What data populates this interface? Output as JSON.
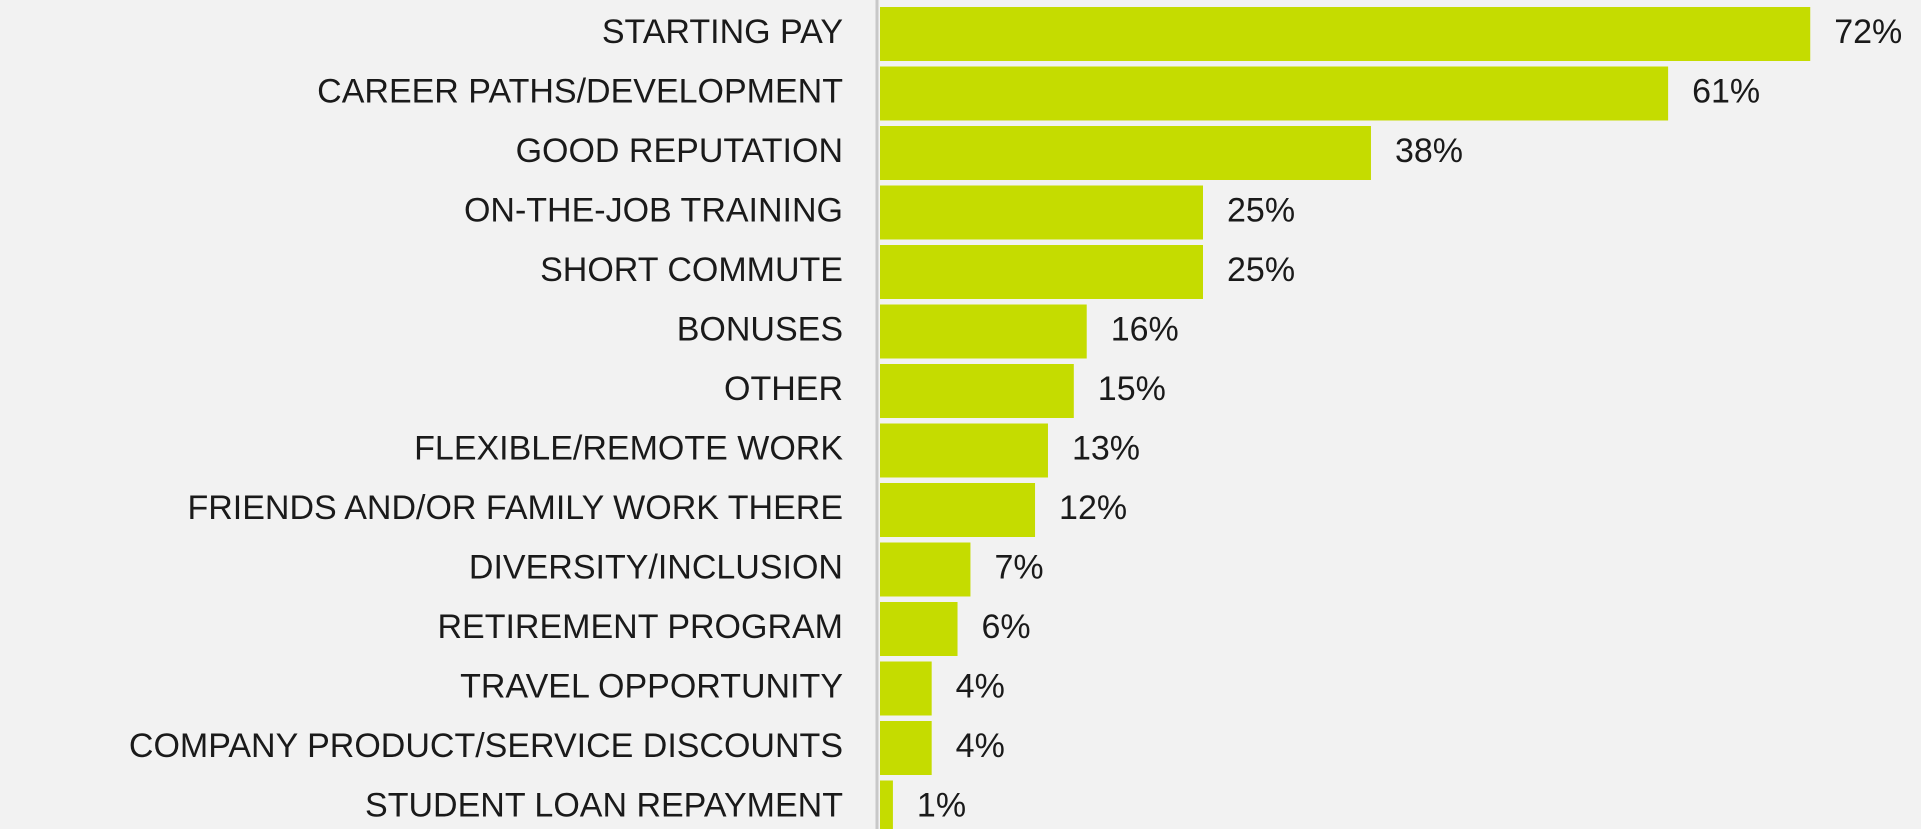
{
  "chart_data": {
    "type": "bar",
    "orientation": "horizontal",
    "categories": [
      "STARTING PAY",
      "CAREER PATHS/DEVELOPMENT",
      "GOOD REPUTATION",
      "ON-THE-JOB TRAINING",
      "SHORT COMMUTE",
      "BONUSES",
      "OTHER",
      "FLEXIBLE/REMOTE WORK",
      "FRIENDS AND/OR FAMILY WORK THERE",
      "DIVERSITY/INCLUSION",
      "RETIREMENT PROGRAM",
      "TRAVEL OPPORTUNITY",
      "COMPANY PRODUCT/SERVICE DISCOUNTS",
      "STUDENT LOAN REPAYMENT"
    ],
    "values": [
      72,
      61,
      38,
      25,
      25,
      16,
      15,
      13,
      12,
      7,
      6,
      4,
      4,
      1
    ],
    "value_labels": [
      "72%",
      "61%",
      "38%",
      "25%",
      "25%",
      "16%",
      "15%",
      "13%",
      "12%",
      "7%",
      "6%",
      "4%",
      "4%",
      "1%"
    ],
    "color": "#c5dc00"
  }
}
